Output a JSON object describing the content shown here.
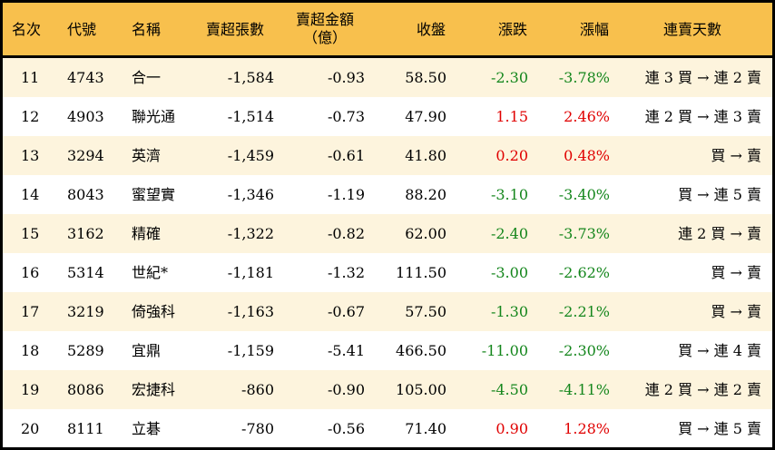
{
  "colors": {
    "header": "#f8c04d",
    "stripe": "#fdf4dd",
    "up": "#e00000",
    "down": "#14861c"
  },
  "headers": {
    "rank": "名次",
    "code": "代號",
    "name": "名稱",
    "net_sell_lots": "賣超張數",
    "net_sell_amount_l1": "賣超金額",
    "net_sell_amount_l2": "（億）",
    "close": "收盤",
    "change": "漲跌",
    "change_pct": "漲幅",
    "streak": "連賣天數"
  },
  "rows": [
    {
      "rank": "11",
      "code": "4743",
      "name": "合一",
      "lots": "-1,584",
      "amount": "-0.93",
      "close": "58.50",
      "change": "-2.30",
      "pct": "-3.78%",
      "dir": "down",
      "streak": "連 3 買 → 連 2 賣"
    },
    {
      "rank": "12",
      "code": "4903",
      "name": "聯光通",
      "lots": "-1,514",
      "amount": "-0.73",
      "close": "47.90",
      "change": "1.15",
      "pct": "2.46%",
      "dir": "up",
      "streak": "連 2 買 → 連 3 賣"
    },
    {
      "rank": "13",
      "code": "3294",
      "name": "英濟",
      "lots": "-1,459",
      "amount": "-0.61",
      "close": "41.80",
      "change": "0.20",
      "pct": "0.48%",
      "dir": "up",
      "streak": "買 → 賣"
    },
    {
      "rank": "14",
      "code": "8043",
      "name": "蜜望實",
      "lots": "-1,346",
      "amount": "-1.19",
      "close": "88.20",
      "change": "-3.10",
      "pct": "-3.40%",
      "dir": "down",
      "streak": "買 → 連 5 賣"
    },
    {
      "rank": "15",
      "code": "3162",
      "name": "精確",
      "lots": "-1,322",
      "amount": "-0.82",
      "close": "62.00",
      "change": "-2.40",
      "pct": "-3.73%",
      "dir": "down",
      "streak": "連 2 買 → 賣"
    },
    {
      "rank": "16",
      "code": "5314",
      "name": "世紀*",
      "lots": "-1,181",
      "amount": "-1.32",
      "close": "111.50",
      "change": "-3.00",
      "pct": "-2.62%",
      "dir": "down",
      "streak": "買 → 賣"
    },
    {
      "rank": "17",
      "code": "3219",
      "name": "倚強科",
      "lots": "-1,163",
      "amount": "-0.67",
      "close": "57.50",
      "change": "-1.30",
      "pct": "-2.21%",
      "dir": "down",
      "streak": "買 → 賣"
    },
    {
      "rank": "18",
      "code": "5289",
      "name": "宜鼎",
      "lots": "-1,159",
      "amount": "-5.41",
      "close": "466.50",
      "change": "-11.00",
      "pct": "-2.30%",
      "dir": "down",
      "streak": "買 → 連 4 賣"
    },
    {
      "rank": "19",
      "code": "8086",
      "name": "宏捷科",
      "lots": "-860",
      "amount": "-0.90",
      "close": "105.00",
      "change": "-4.50",
      "pct": "-4.11%",
      "dir": "down",
      "streak": "連 2 買 → 連 2 賣"
    },
    {
      "rank": "20",
      "code": "8111",
      "name": "立碁",
      "lots": "-780",
      "amount": "-0.56",
      "close": "71.40",
      "change": "0.90",
      "pct": "1.28%",
      "dir": "up",
      "streak": "買 → 連 5 賣"
    }
  ]
}
